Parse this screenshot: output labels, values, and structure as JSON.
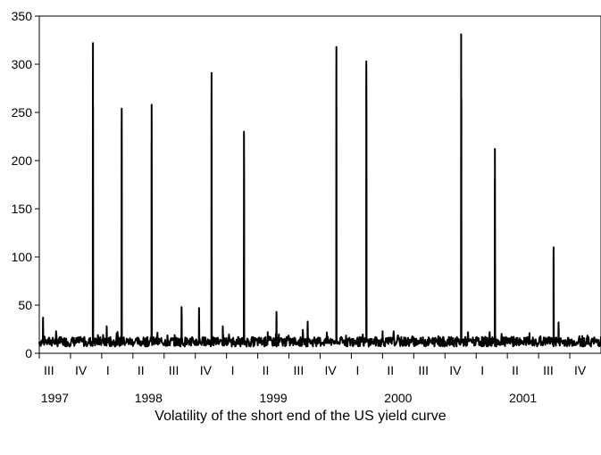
{
  "chart_data": {
    "type": "line",
    "caption": "Volatility of the short end of the US yield curve",
    "ylim": [
      0,
      350
    ],
    "yticks": [
      0,
      50,
      100,
      150,
      200,
      250,
      300,
      350
    ],
    "grid": false,
    "xlim": [
      1997.5,
      2002.0
    ],
    "quarter_ticks": [
      {
        "label": "III",
        "x": 1997.5
      },
      {
        "label": "IV",
        "x": 1997.75
      },
      {
        "label": "I",
        "x": 1998.0
      },
      {
        "label": "II",
        "x": 1998.25
      },
      {
        "label": "III",
        "x": 1998.5
      },
      {
        "label": "IV",
        "x": 1998.75
      },
      {
        "label": "I",
        "x": 1999.0
      },
      {
        "label": "II",
        "x": 1999.25
      },
      {
        "label": "III",
        "x": 1999.5
      },
      {
        "label": "IV",
        "x": 1999.75
      },
      {
        "label": "I",
        "x": 2000.0
      },
      {
        "label": "II",
        "x": 2000.25
      },
      {
        "label": "III",
        "x": 2000.5
      },
      {
        "label": "IV",
        "x": 2000.75
      },
      {
        "label": "I",
        "x": 2001.0
      },
      {
        "label": "II",
        "x": 2001.25
      },
      {
        "label": "III",
        "x": 2001.5
      },
      {
        "label": "IV",
        "x": 2001.75
      }
    ],
    "year_labels": [
      {
        "label": "1997",
        "x": 1997.625
      },
      {
        "label": "1998",
        "x": 1998.375
      },
      {
        "label": "1999",
        "x": 1999.375
      },
      {
        "label": "2000",
        "x": 2000.375
      },
      {
        "label": "2001",
        "x": 2001.375
      }
    ],
    "baseline": 12,
    "spikes": [
      {
        "x": 1997.53,
        "y": 37
      },
      {
        "x": 1997.93,
        "y": 322
      },
      {
        "x": 1998.04,
        "y": 28
      },
      {
        "x": 1998.16,
        "y": 254
      },
      {
        "x": 1998.4,
        "y": 258
      },
      {
        "x": 1998.64,
        "y": 48
      },
      {
        "x": 1998.78,
        "y": 47
      },
      {
        "x": 1998.88,
        "y": 291
      },
      {
        "x": 1998.97,
        "y": 28
      },
      {
        "x": 1999.14,
        "y": 230
      },
      {
        "x": 1999.33,
        "y": 22
      },
      {
        "x": 1999.4,
        "y": 43
      },
      {
        "x": 1999.65,
        "y": 33
      },
      {
        "x": 1999.88,
        "y": 318
      },
      {
        "x": 2000.12,
        "y": 303
      },
      {
        "x": 2000.25,
        "y": 23
      },
      {
        "x": 2000.65,
        "y": 12
      },
      {
        "x": 2000.88,
        "y": 331
      },
      {
        "x": 2001.15,
        "y": 212
      },
      {
        "x": 2001.32,
        "y": 14
      },
      {
        "x": 2001.62,
        "y": 110
      },
      {
        "x": 2001.66,
        "y": 32
      },
      {
        "x": 2001.85,
        "y": 18
      }
    ]
  }
}
